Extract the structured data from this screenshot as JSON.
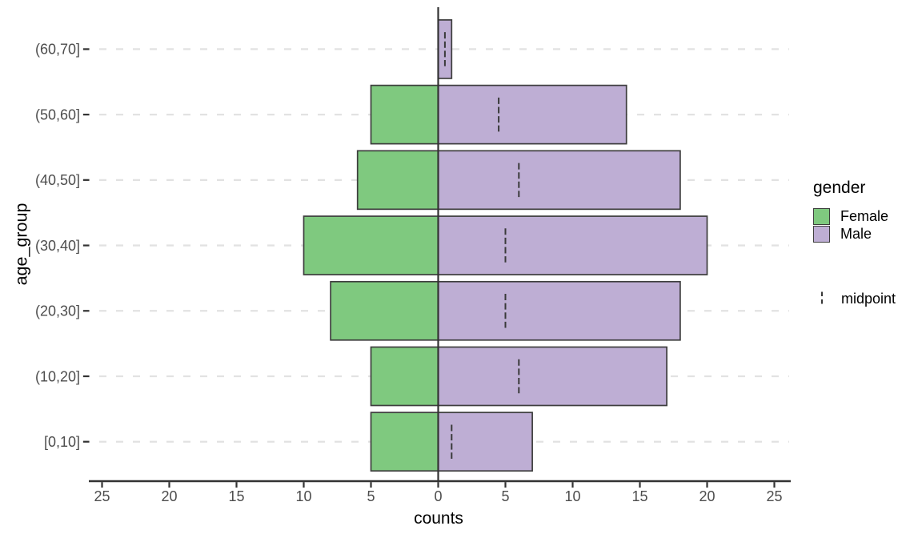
{
  "chart_data": {
    "type": "bar",
    "subtype": "horizontal-population-pyramid",
    "title": "",
    "xlabel": "counts",
    "ylabel": "age_group",
    "row_order": "top_to_bottom",
    "categories": [
      "(60,70]",
      "(50,60]",
      "(40,50]",
      "(30,40]",
      "(20,30]",
      "(10,20]",
      "[0,10]"
    ],
    "series": [
      {
        "name": "Female",
        "side": "left",
        "color": "#7FC97F",
        "values": [
          0,
          5,
          6,
          10,
          8,
          5,
          5
        ]
      },
      {
        "name": "Male",
        "side": "right",
        "color": "#BEAED4",
        "values": [
          1,
          14,
          18,
          20,
          18,
          17,
          7
        ]
      }
    ],
    "midpoint": {
      "name": "midpoint",
      "values": [
        0.5,
        4.5,
        6,
        5,
        5,
        6,
        1
      ]
    },
    "x_axis": {
      "tick_units": [
        -25,
        -20,
        -15,
        -10,
        -5,
        0,
        5,
        10,
        15,
        20,
        25
      ],
      "tick_labels": [
        "25",
        "20",
        "15",
        "10",
        "5",
        "0",
        "5",
        "10",
        "15",
        "20",
        "25"
      ],
      "xlim": [
        -26.5,
        26.5
      ]
    },
    "grid": {
      "horizontal_dashed": true,
      "vertical": false
    },
    "zero_line": true,
    "legend": {
      "title": "gender",
      "items": [
        {
          "label": "Female",
          "color": "#7FC97F"
        },
        {
          "label": "Male",
          "color": "#BEAED4"
        }
      ],
      "extra_items": [
        {
          "label": "midpoint",
          "glyph": "dashed-vertical-line"
        }
      ],
      "position": "right"
    },
    "colors": {
      "bar_outline": "#3D3D3D",
      "axis_line": "#333333",
      "tick_text": "#4D4D4D",
      "title_text": "#000000",
      "gridline": "#E2E2E2",
      "midpoint_line": "#3A3A3A",
      "background": "#FFFFFF"
    }
  }
}
